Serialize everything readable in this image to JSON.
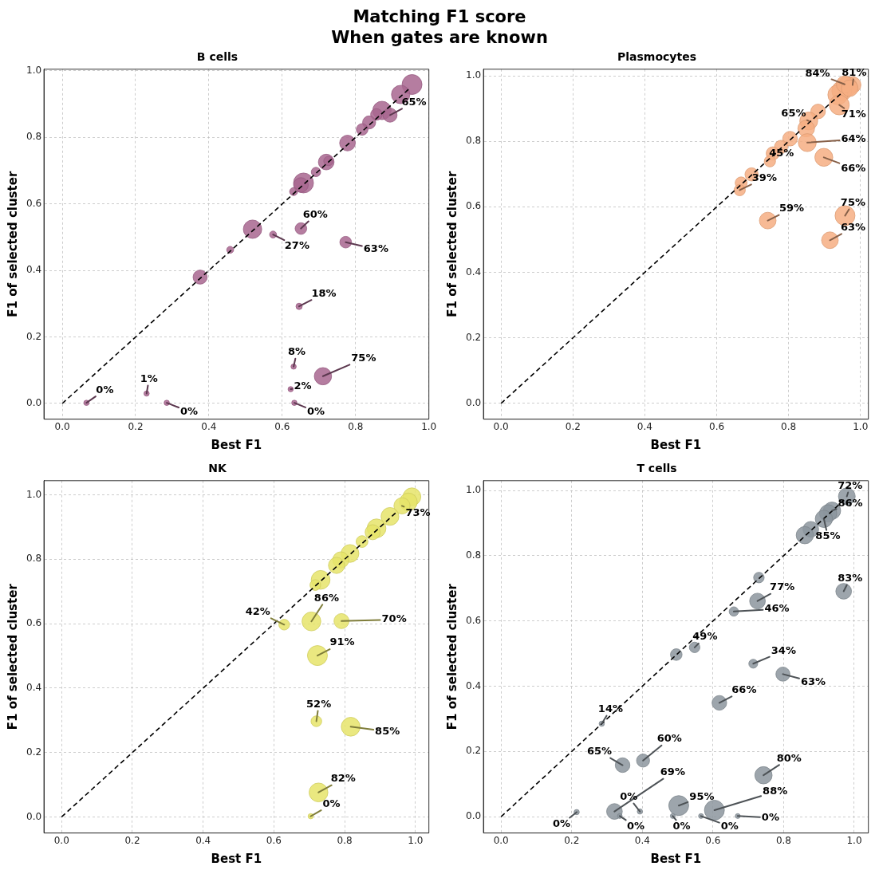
{
  "chart_data": [
    {
      "type": "other",
      "title": "Matching F1 score",
      "subtitle": "When gates are known"
    },
    {
      "type": "bubble",
      "title": "B cells",
      "xlabel": "Best F1",
      "ylabel": "F1 of selected cluster",
      "xlim": [
        -0.05,
        1.0
      ],
      "ylim": [
        -0.047,
        1.005
      ],
      "xticks": [
        {
          "value": 0,
          "label": "0.0"
        },
        {
          "value": 0.2,
          "label": "0.2"
        },
        {
          "value": 0.4,
          "label": "0.4"
        },
        {
          "value": 0.6,
          "label": "0.6"
        },
        {
          "value": 0.8,
          "label": "0.8"
        },
        {
          "value": 1,
          "label": "1.0"
        }
      ],
      "yticks": [
        {
          "value": 0,
          "label": "0.0"
        },
        {
          "value": 0.2,
          "label": "0.2"
        },
        {
          "value": 0.4,
          "label": "0.4"
        },
        {
          "value": 0.6,
          "label": "0.6"
        },
        {
          "value": 0.8,
          "label": "0.8"
        },
        {
          "value": 1,
          "label": "1.0"
        }
      ],
      "grid": true,
      "series": [
        {
          "type": "bubble",
          "color": "#a8668f",
          "x": [
            0.954,
            0.923,
            0.872,
            0.894,
            0.857,
            0.837,
            0.818,
            0.778,
            0.72,
            0.726,
            0.692,
            0.658,
            0.651,
            0.631,
            0.519,
            0.458,
            0.376,
            0.575,
            0.651,
            0.773,
            0.646,
            0.631,
            0.711,
            0.623,
            0.633,
            0.066,
            0.23,
            0.285
          ],
          "values": [
            0.959,
            0.929,
            0.881,
            0.867,
            0.869,
            0.845,
            0.824,
            0.783,
            0.726,
            0.729,
            0.696,
            0.663,
            0.657,
            0.637,
            0.524,
            0.462,
            0.38,
            0.508,
            0.526,
            0.485,
            0.292,
            0.111,
            0.082,
            0.043,
            0.002,
            0.002,
            0.03,
            0.002
          ],
          "sizes": [
            1,
            0.85,
            0.85,
            0.5,
            0.34,
            0.43,
            0.34,
            0.62,
            0.62,
            0.22,
            0.22,
            1,
            0.54,
            0.16,
            0.85,
            0.12,
            0.5,
            0.12,
            0.34,
            0.34,
            0.1,
            0.07,
            0.75,
            0.07,
            0.07,
            0.07,
            0.07,
            0.07
          ]
        },
        {
          "type": "line",
          "color": "#000000",
          "line_style": "dashed",
          "marker": "none",
          "x": [
            0,
            0.95
          ],
          "values": [
            0,
            0.95
          ]
        }
      ],
      "annotations": [
        {
          "text": "65%",
          "x": 0.894,
          "y": 0.867
        },
        {
          "text": "60%",
          "x": 0.651,
          "y": 0.526
        },
        {
          "text": "27%",
          "x": 0.575,
          "y": 0.508
        },
        {
          "text": "63%",
          "x": 0.773,
          "y": 0.485
        },
        {
          "text": "18%",
          "x": 0.646,
          "y": 0.292
        },
        {
          "text": "8%",
          "x": 0.631,
          "y": 0.111
        },
        {
          "text": "75%",
          "x": 0.711,
          "y": 0.082
        },
        {
          "text": "2%",
          "x": 0.623,
          "y": 0.043
        },
        {
          "text": "0%",
          "x": 0.633,
          "y": 0.002
        },
        {
          "text": "0%",
          "x": 0.066,
          "y": 0.002
        },
        {
          "text": "1%",
          "x": 0.23,
          "y": 0.03
        },
        {
          "text": "0%",
          "x": 0.285,
          "y": 0.002
        }
      ]
    },
    {
      "type": "bubble",
      "title": "Plasmocytes",
      "xlabel": "Best F1",
      "ylabel": "F1 of selected cluster",
      "xlim": [
        -0.049,
        1.022
      ],
      "ylim": [
        -0.048,
        1.02
      ],
      "xticks": [
        {
          "value": 0,
          "label": "0.0"
        },
        {
          "value": 0.2,
          "label": "0.2"
        },
        {
          "value": 0.4,
          "label": "0.4"
        },
        {
          "value": 0.6,
          "label": "0.6"
        },
        {
          "value": 0.8,
          "label": "0.8"
        },
        {
          "value": 1,
          "label": "1.0"
        }
      ],
      "yticks": [
        {
          "value": 0,
          "label": "0.0"
        },
        {
          "value": 0.2,
          "label": "0.2"
        },
        {
          "value": 0.4,
          "label": "0.4"
        },
        {
          "value": 0.6,
          "label": "0.6"
        },
        {
          "value": 0.8,
          "label": "0.8"
        },
        {
          "value": 1,
          "label": "1.0"
        }
      ],
      "grid": true,
      "series": [
        {
          "type": "bubble",
          "color": "#f6ae82",
          "x": [
            0.978,
            0.963,
            0.948,
            0.937,
            0.956,
            0.97,
            0.941,
            0.882,
            0.856,
            0.849,
            0.852,
            0.898,
            0.804,
            0.779,
            0.756,
            0.748,
            0.697,
            0.668,
            0.664,
            0.742,
            0.957,
            0.915
          ],
          "values": [
            0.972,
            0.967,
            0.954,
            0.942,
            0.974,
            0.962,
            0.911,
            0.891,
            0.862,
            0.839,
            0.796,
            0.751,
            0.808,
            0.783,
            0.763,
            0.739,
            0.699,
            0.673,
            0.651,
            0.558,
            0.573,
            0.498
          ],
          "sizes": [
            0.7,
            1,
            1,
            1,
            0.7,
            0.7,
            1,
            0.54,
            0.81,
            0.7,
            0.81,
            0.81,
            0.54,
            0.44,
            0.44,
            0.32,
            0.44,
            0.36,
            0.32,
            0.7,
            1,
            0.7
          ]
        },
        {
          "type": "line",
          "color": "#000000",
          "line_style": "dashed",
          "marker": "none",
          "x": [
            0,
            0.95
          ],
          "values": [
            0,
            0.95
          ]
        }
      ],
      "annotations": [
        {
          "text": "84%",
          "x": 0.956,
          "y": 0.974
        },
        {
          "text": "81%",
          "x": 0.978,
          "y": 0.972
        },
        {
          "text": "71%",
          "x": 0.941,
          "y": 0.911
        },
        {
          "text": "65%",
          "x": 0.856,
          "y": 0.862
        },
        {
          "text": "64%",
          "x": 0.852,
          "y": 0.796
        },
        {
          "text": "66%",
          "x": 0.898,
          "y": 0.751
        },
        {
          "text": "45%",
          "x": 0.756,
          "y": 0.763
        },
        {
          "text": "39%",
          "x": 0.664,
          "y": 0.651
        },
        {
          "text": "59%",
          "x": 0.742,
          "y": 0.558
        },
        {
          "text": "75%",
          "x": 0.957,
          "y": 0.573
        },
        {
          "text": "63%",
          "x": 0.915,
          "y": 0.498
        }
      ]
    },
    {
      "type": "bubble",
      "title": "NK",
      "xlabel": "Best F1",
      "ylabel": "F1 of selected cluster",
      "xlim": [
        -0.05,
        1.038
      ],
      "ylim": [
        -0.05,
        1.044
      ],
      "xticks": [
        {
          "value": 0,
          "label": "0.0"
        },
        {
          "value": 0.2,
          "label": "0.2"
        },
        {
          "value": 0.4,
          "label": "0.4"
        },
        {
          "value": 0.6,
          "label": "0.6"
        },
        {
          "value": 0.8,
          "label": "0.8"
        },
        {
          "value": 1,
          "label": "1.0"
        }
      ],
      "yticks": [
        {
          "value": 0,
          "label": "0.0"
        },
        {
          "value": 0.2,
          "label": "0.2"
        },
        {
          "value": 0.4,
          "label": "0.4"
        },
        {
          "value": 0.6,
          "label": "0.6"
        },
        {
          "value": 0.8,
          "label": "0.8"
        },
        {
          "value": 1,
          "label": "1.0"
        }
      ],
      "grid": true,
      "series": [
        {
          "type": "bubble",
          "color": "#e6e46a",
          "x": [
            0.99,
            0.98,
            0.962,
            0.928,
            0.89,
            0.879,
            0.849,
            0.815,
            0.789,
            0.777,
            0.732,
            0.717,
            0.629,
            0.706,
            0.791,
            0.723,
            0.72,
            0.817,
            0.726,
            0.704
          ],
          "values": [
            0.994,
            0.978,
            0.966,
            0.933,
            0.896,
            0.884,
            0.855,
            0.818,
            0.798,
            0.781,
            0.736,
            0.72,
            0.597,
            0.607,
            0.608,
            0.501,
            0.297,
            0.28,
            0.076,
            0.002
          ],
          "sizes": [
            0.8,
            0.8,
            0.66,
            0.8,
            0.89,
            0.57,
            0.35,
            0.8,
            0.66,
            0.66,
            0.89,
            0.29,
            0.29,
            0.89,
            0.57,
            1,
            0.29,
            0.89,
            0.89,
            0.07
          ]
        },
        {
          "type": "line",
          "color": "#000000",
          "line_style": "dashed",
          "marker": "none",
          "x": [
            0,
            0.95
          ],
          "values": [
            0,
            0.95
          ]
        }
      ],
      "annotations": [
        {
          "text": "73%",
          "x": 0.962,
          "y": 0.966
        },
        {
          "text": "86%",
          "x": 0.706,
          "y": 0.607
        },
        {
          "text": "42%",
          "x": 0.629,
          "y": 0.597
        },
        {
          "text": "70%",
          "x": 0.791,
          "y": 0.608
        },
        {
          "text": "91%",
          "x": 0.723,
          "y": 0.501
        },
        {
          "text": "52%",
          "x": 0.72,
          "y": 0.297
        },
        {
          "text": "85%",
          "x": 0.817,
          "y": 0.28
        },
        {
          "text": "82%",
          "x": 0.726,
          "y": 0.076
        },
        {
          "text": "0%",
          "x": 0.704,
          "y": 0.002
        }
      ]
    },
    {
      "type": "bubble",
      "title": "T cells",
      "xlabel": "Best F1",
      "ylabel": "F1 of selected cluster",
      "xlim": [
        -0.05,
        1.04
      ],
      "ylim": [
        -0.05,
        1.03
      ],
      "xticks": [
        {
          "value": 0,
          "label": "0.0"
        },
        {
          "value": 0.2,
          "label": "0.2"
        },
        {
          "value": 0.4,
          "label": "0.4"
        },
        {
          "value": 0.6,
          "label": "0.6"
        },
        {
          "value": 0.8,
          "label": "0.8"
        },
        {
          "value": 1,
          "label": "1.0"
        }
      ],
      "yticks": [
        {
          "value": 0,
          "label": "0.0"
        },
        {
          "value": 0.2,
          "label": "0.2"
        },
        {
          "value": 0.4,
          "label": "0.4"
        },
        {
          "value": 0.6,
          "label": "0.6"
        },
        {
          "value": 0.8,
          "label": "0.8"
        },
        {
          "value": 1,
          "label": "1.0"
        }
      ],
      "grid": true,
      "series": [
        {
          "type": "bubble",
          "color": "#8c959d",
          "x": [
            0.979,
            0.937,
            0.926,
            0.914,
            0.877,
            0.86,
            0.97,
            0.73,
            0.726,
            0.659,
            0.548,
            0.496,
            0.714,
            0.798,
            0.618,
            0.285,
            0.344,
            0.402,
            0.743,
            0.321,
            0.503,
            0.604,
            0.214,
            0.393,
            0.336,
            0.486,
            0.566,
            0.67
          ],
          "values": [
            0.982,
            0.938,
            0.93,
            0.913,
            0.881,
            0.863,
            0.691,
            0.733,
            0.661,
            0.629,
            0.519,
            0.497,
            0.469,
            0.437,
            0.349,
            0.285,
            0.158,
            0.172,
            0.127,
            0.016,
            0.034,
            0.02,
            0.014,
            0.016,
            0.002,
            0.002,
            0.002,
            0.002
          ],
          "sizes": [
            0.71,
            0.75,
            0.75,
            0.75,
            0.62,
            0.75,
            0.62,
            0.28,
            0.62,
            0.22,
            0.28,
            0.34,
            0.2,
            0.5,
            0.54,
            0.07,
            0.54,
            0.43,
            0.75,
            0.62,
            1,
            1,
            0.07,
            0.07,
            0.06,
            0.06,
            0.06,
            0.06
          ]
        },
        {
          "type": "line",
          "color": "#000000",
          "line_style": "dashed",
          "marker": "none",
          "x": [
            0,
            0.97
          ],
          "values": [
            0,
            0.97
          ]
        }
      ],
      "annotations": [
        {
          "text": "72%",
          "x": 0.979,
          "y": 0.982
        },
        {
          "text": "86%",
          "x": 0.937,
          "y": 0.938
        },
        {
          "text": "85%",
          "x": 0.914,
          "y": 0.913
        },
        {
          "text": "83%",
          "x": 0.97,
          "y": 0.691
        },
        {
          "text": "77%",
          "x": 0.726,
          "y": 0.661
        },
        {
          "text": "46%",
          "x": 0.659,
          "y": 0.629
        },
        {
          "text": "49%",
          "x": 0.548,
          "y": 0.519
        },
        {
          "text": "34%",
          "x": 0.714,
          "y": 0.469
        },
        {
          "text": "63%",
          "x": 0.798,
          "y": 0.437
        },
        {
          "text": "66%",
          "x": 0.618,
          "y": 0.349
        },
        {
          "text": "14%",
          "x": 0.285,
          "y": 0.285
        },
        {
          "text": "65%",
          "x": 0.344,
          "y": 0.158
        },
        {
          "text": "60%",
          "x": 0.402,
          "y": 0.172
        },
        {
          "text": "80%",
          "x": 0.743,
          "y": 0.127
        },
        {
          "text": "69%",
          "x": 0.321,
          "y": 0.016
        },
        {
          "text": "95%",
          "x": 0.503,
          "y": 0.034
        },
        {
          "text": "88%",
          "x": 0.604,
          "y": 0.02
        },
        {
          "text": "0%",
          "x": 0.214,
          "y": 0.014
        },
        {
          "text": "0%",
          "x": 0.393,
          "y": 0.016
        },
        {
          "text": "0%",
          "x": 0.336,
          "y": 0.002
        },
        {
          "text": "0%",
          "x": 0.486,
          "y": 0.002
        },
        {
          "text": "0%",
          "x": 0.566,
          "y": 0.002
        },
        {
          "text": "0%",
          "x": 0.67,
          "y": 0.002
        }
      ]
    }
  ]
}
